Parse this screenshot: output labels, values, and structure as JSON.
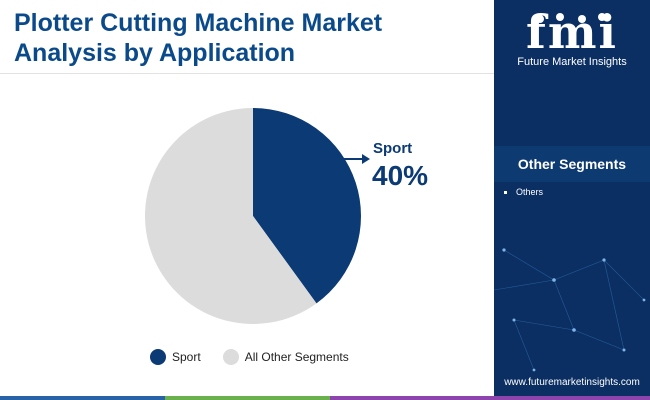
{
  "header": {
    "title_line1": "Plotter Cutting Machine Market",
    "title_line2": "Analysis by Application"
  },
  "logo": {
    "letters": "fmi",
    "subtitle": "Future Market Insights"
  },
  "sidebar": {
    "heading": "Other Segments",
    "items": [
      "Others"
    ],
    "website": "www.futuremarketinsights.com"
  },
  "chart_data": {
    "type": "pie",
    "slices": [
      {
        "label": "Sport",
        "value": 40,
        "color": "#0b3a75"
      },
      {
        "label": "All Other Segments",
        "value": 60,
        "color": "#dcdcdc"
      }
    ],
    "annotation": {
      "label": "Sport",
      "value_text": "40%"
    },
    "legend": [
      "Sport",
      "All Other Segments"
    ],
    "legend_position": "bottom"
  },
  "colors": {
    "brand_dark": "#0b2f63",
    "title": "#0b4a8a",
    "bar_segments": [
      "#2a62a8",
      "#6ab04c",
      "#8e44ad"
    ]
  }
}
